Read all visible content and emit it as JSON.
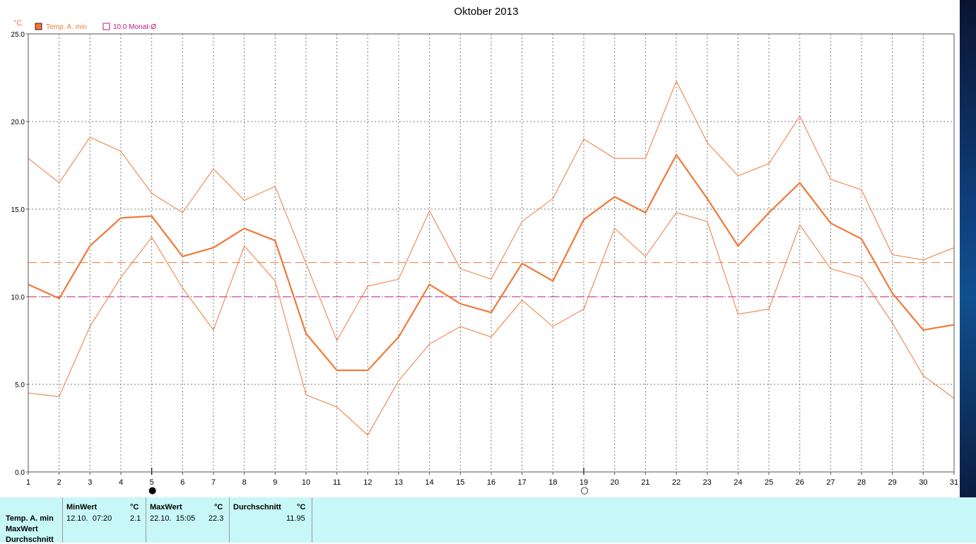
{
  "chart_data": {
    "type": "line",
    "title": "Oktober 2013",
    "ylabel": "°C",
    "xlabel": "",
    "ylim": [
      0,
      25
    ],
    "yticks": [
      "0.0",
      "5.0",
      "10.0",
      "15.0",
      "20.0",
      "25.0"
    ],
    "x": [
      1,
      2,
      3,
      4,
      5,
      6,
      7,
      8,
      9,
      10,
      11,
      12,
      13,
      14,
      15,
      16,
      17,
      18,
      19,
      20,
      21,
      22,
      23,
      24,
      25,
      26,
      27,
      28,
      29,
      30,
      31
    ],
    "grid": true,
    "legend_position": "top-left",
    "legend": [
      {
        "label": "Temp. A. min",
        "color": "#f07838",
        "marker": "filled-square"
      },
      {
        "label": "10.0 Monat-Ø",
        "color": "#c0147c",
        "marker": "open-square"
      }
    ],
    "series": [
      {
        "role": "average",
        "color": "#f07838",
        "values": [
          10.7,
          9.9,
          12.9,
          14.5,
          14.6,
          12.3,
          12.8,
          13.9,
          13.2,
          7.9,
          5.8,
          5.8,
          7.7,
          10.7,
          9.6,
          9.1,
          11.9,
          10.9,
          14.4,
          15.7,
          14.8,
          18.1,
          15.6,
          12.9,
          14.8,
          16.5,
          14.2,
          13.3,
          10.2,
          8.1,
          8.4
        ]
      },
      {
        "role": "maximum",
        "color": "#f07838",
        "values": [
          17.9,
          16.5,
          19.1,
          18.3,
          15.9,
          14.8,
          17.3,
          15.5,
          16.3,
          11.9,
          7.5,
          10.6,
          11.0,
          14.9,
          11.6,
          11.0,
          14.3,
          15.6,
          19.0,
          17.9,
          17.9,
          22.3,
          18.8,
          16.9,
          17.6,
          20.3,
          16.7,
          16.1,
          12.4,
          12.1,
          12.8
        ]
      },
      {
        "role": "minimum",
        "color": "#f07838",
        "values": [
          4.5,
          4.3,
          8.3,
          11.1,
          13.4,
          10.5,
          8.1,
          12.9,
          10.9,
          4.4,
          3.7,
          2.1,
          5.2,
          7.3,
          8.3,
          7.7,
          9.8,
          8.3,
          9.3,
          13.9,
          12.3,
          14.8,
          14.3,
          9.0,
          9.3,
          14.1,
          11.6,
          11.1,
          8.5,
          5.5,
          4.2
        ]
      }
    ],
    "reference_lines": [
      {
        "value": 11.95,
        "color": "#f07838",
        "style": "dashed"
      },
      {
        "value": 10.0,
        "color": "#c0147c",
        "style": "dashed"
      }
    ],
    "moon_phases": [
      {
        "day": 5,
        "symbol": "●"
      },
      {
        "day": 19,
        "symbol": "○"
      }
    ]
  },
  "stats": {
    "row_labels": [
      "Temp. A. min",
      "MaxWert",
      "Durchschnitt"
    ],
    "columns": [
      {
        "header": "MinWert",
        "unit": "°C",
        "date": "12.10.  07:20",
        "value": "2.1"
      },
      {
        "header": "MaxWert",
        "unit": "°C",
        "date": "22.10.  15:05",
        "value": "22.3"
      },
      {
        "header": "Durchschnitt",
        "unit": "°C",
        "date": "",
        "value": "11.95"
      }
    ]
  },
  "colors": {
    "background": "#ffffff",
    "series": "#f07838",
    "monthly_average": "#c0147c",
    "grid": "#7a7a7a",
    "stats_background": "#c8f7f7"
  }
}
